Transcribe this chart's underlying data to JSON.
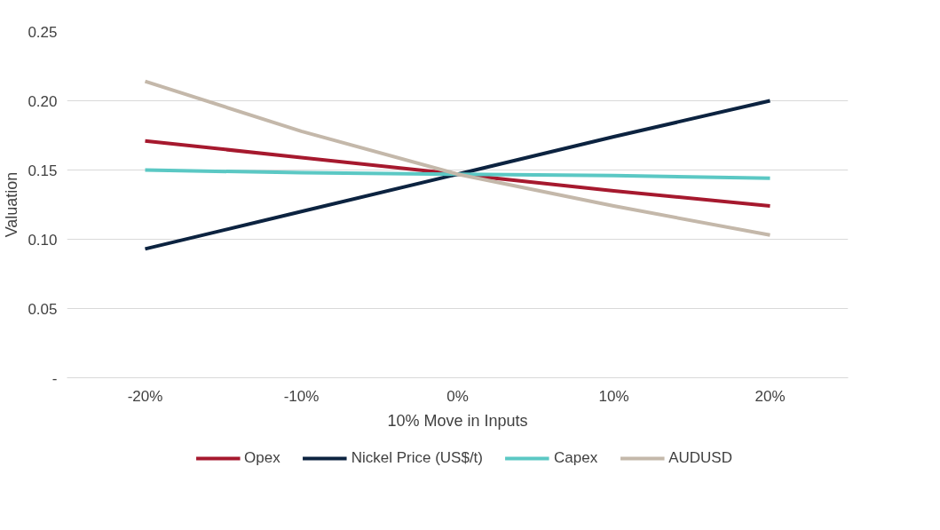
{
  "chart_data": {
    "type": "line",
    "xlabel": "10% Move in Inputs",
    "ylabel": "Valuation",
    "categories": [
      "-20%",
      "-10%",
      "0%",
      "10%",
      "20%"
    ],
    "series": [
      {
        "name": "Opex",
        "color": "#a6192e",
        "values": [
          0.171,
          0.159,
          0.147,
          0.135,
          0.124
        ]
      },
      {
        "name": "Nickel Price (US$/t)",
        "color": "#0c2340",
        "values": [
          0.093,
          0.12,
          0.147,
          0.174,
          0.2
        ]
      },
      {
        "name": "Capex",
        "color": "#5bc8c4",
        "values": [
          0.15,
          0.148,
          0.147,
          0.146,
          0.144
        ]
      },
      {
        "name": "AUDUSD",
        "color": "#c4b8aa",
        "values": [
          0.214,
          0.178,
          0.147,
          0.124,
          0.103
        ]
      }
    ],
    "ylim": [
      0,
      0.25
    ],
    "yticks": [
      {
        "value": 0,
        "label": "-"
      },
      0.05,
      {
        "value": 0.1,
        "label": "0.10"
      },
      0.15,
      {
        "value": 0.2,
        "label": "0.20"
      },
      0.25
    ],
    "grid": "y",
    "legend": "bottom",
    "marker": "none",
    "line_style": "solid"
  }
}
